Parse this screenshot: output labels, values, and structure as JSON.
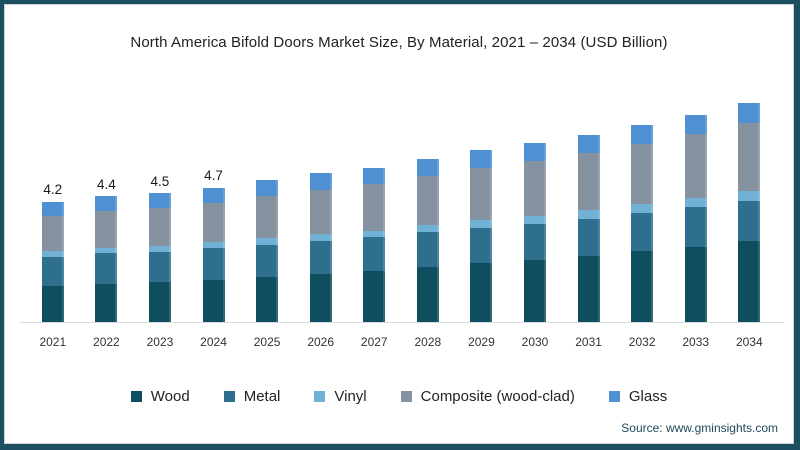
{
  "page": {
    "border_color": "#1d4f63",
    "source": "Source: www.gminsights.com"
  },
  "chart_data": {
    "type": "bar",
    "stacked": true,
    "title": "North America Bifold Doors Market Size, By Material, 2021 – 2034 (USD Billion)",
    "unit": "USD Billion",
    "xlabel": "",
    "ylabel": "",
    "grid": false,
    "legend_position": "bottom",
    "categories": [
      "2021",
      "2022",
      "2023",
      "2024",
      "2025",
      "2026",
      "2027",
      "2028",
      "2029",
      "2030",
      "2031",
      "2032",
      "2033",
      "2034"
    ],
    "series": [
      {
        "name": "Wood",
        "color": "#0f4e5e",
        "values": [
          1.25,
          1.34,
          1.39,
          1.48,
          1.58,
          1.69,
          1.78,
          1.92,
          2.05,
          2.17,
          2.31,
          2.47,
          2.64,
          2.82
        ]
      },
      {
        "name": "Metal",
        "color": "#2e6f8d",
        "values": [
          1.04,
          1.07,
          1.07,
          1.1,
          1.13,
          1.16,
          1.18,
          1.22,
          1.25,
          1.27,
          1.3,
          1.34,
          1.37,
          1.41
        ]
      },
      {
        "name": "Vinyl",
        "color": "#72b1d6",
        "values": [
          0.18,
          0.19,
          0.2,
          0.21,
          0.22,
          0.23,
          0.24,
          0.25,
          0.27,
          0.28,
          0.3,
          0.31,
          0.33,
          0.35
        ]
      },
      {
        "name": "Composite (wood-clad)",
        "color": "#8593a1",
        "values": [
          1.22,
          1.28,
          1.32,
          1.38,
          1.47,
          1.55,
          1.62,
          1.71,
          1.81,
          1.9,
          2.0,
          2.12,
          2.23,
          2.37
        ]
      },
      {
        "name": "Glass",
        "color": "#4e90d1",
        "values": [
          0.51,
          0.52,
          0.52,
          0.53,
          0.55,
          0.57,
          0.58,
          0.6,
          0.62,
          0.63,
          0.64,
          0.66,
          0.68,
          0.7
        ]
      }
    ],
    "totals": [
      4.2,
      4.4,
      4.5,
      4.7,
      4.95,
      5.2,
      5.4,
      5.7,
      6.0,
      6.25,
      6.55,
      6.9,
      7.25,
      7.65
    ],
    "value_labels": [
      "4.2",
      "4.4",
      "4.5",
      "4.7",
      "",
      "",
      "",
      "",
      "",
      "",
      "",
      "",
      "",
      ""
    ],
    "ylim": [
      0,
      8
    ]
  }
}
